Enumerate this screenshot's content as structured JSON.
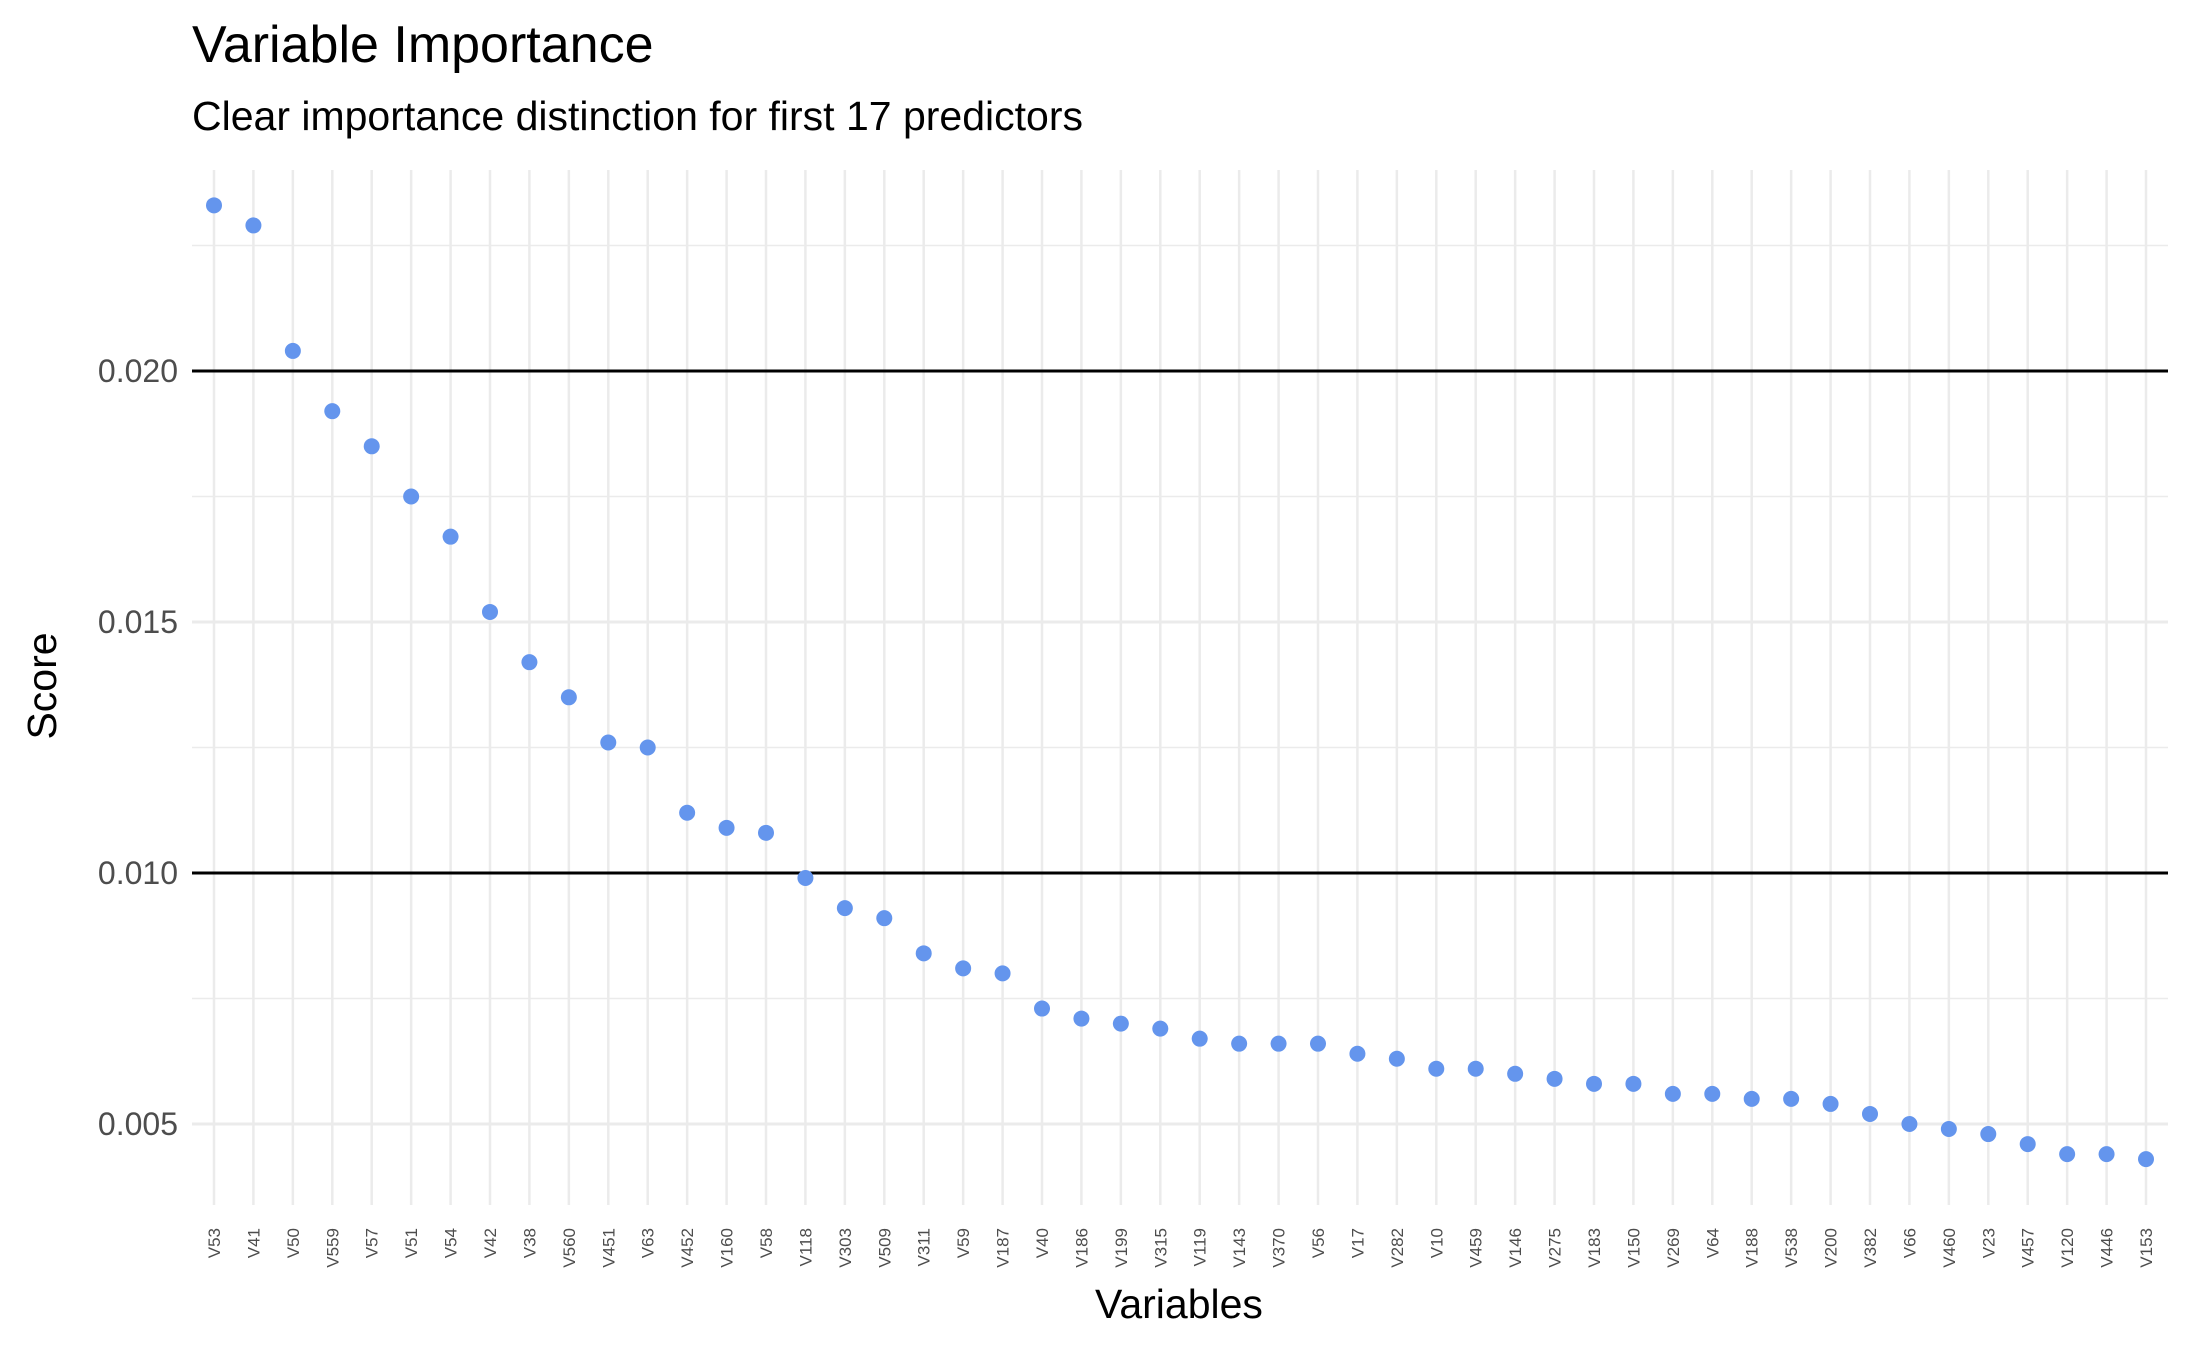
{
  "chart_data": {
    "type": "scatter",
    "title": "Variable Importance",
    "subtitle": "Clear importance distinction for first 17 predictors",
    "xlabel": "Variables",
    "ylabel": "Score",
    "ylim": [
      0.0037,
      0.0237
    ],
    "yticks": [
      0.005,
      0.01,
      0.015,
      0.02
    ],
    "ytick_labels": [
      "0.005",
      "0.010",
      "0.015",
      "0.020"
    ],
    "reference_lines": [
      0.01,
      0.02
    ],
    "grid": true,
    "point_color": "#6495ed",
    "reference_line_color": "#000000",
    "grid_color": "#ebebeb",
    "categories": [
      "V53",
      "V41",
      "V50",
      "V559",
      "V57",
      "V51",
      "V54",
      "V42",
      "V38",
      "V560",
      "V451",
      "V63",
      "V452",
      "V160",
      "V58",
      "V118",
      "V303",
      "V509",
      "V311",
      "V59",
      "V187",
      "V40",
      "V186",
      "V199",
      "V315",
      "V119",
      "V143",
      "V370",
      "V56",
      "V17",
      "V282",
      "V10",
      "V459",
      "V146",
      "V275",
      "V183",
      "V150",
      "V269",
      "V64",
      "V188",
      "V538",
      "V200",
      "V382",
      "V66",
      "V460",
      "V23",
      "V457",
      "V120",
      "V446",
      "V153"
    ],
    "values": [
      0.0233,
      0.0229,
      0.0204,
      0.0192,
      0.0185,
      0.0175,
      0.0167,
      0.0152,
      0.0142,
      0.0135,
      0.0126,
      0.0125,
      0.0112,
      0.0109,
      0.0108,
      0.0099,
      0.0093,
      0.0091,
      0.0084,
      0.0081,
      0.008,
      0.0073,
      0.0071,
      0.007,
      0.0069,
      0.0067,
      0.0066,
      0.0066,
      0.0066,
      0.0064,
      0.0063,
      0.0061,
      0.0061,
      0.006,
      0.0059,
      0.0058,
      0.0058,
      0.0056,
      0.0056,
      0.0055,
      0.0055,
      0.0054,
      0.0052,
      0.005,
      0.0049,
      0.0048,
      0.0046,
      0.0044,
      0.0044,
      0.0043
    ]
  }
}
